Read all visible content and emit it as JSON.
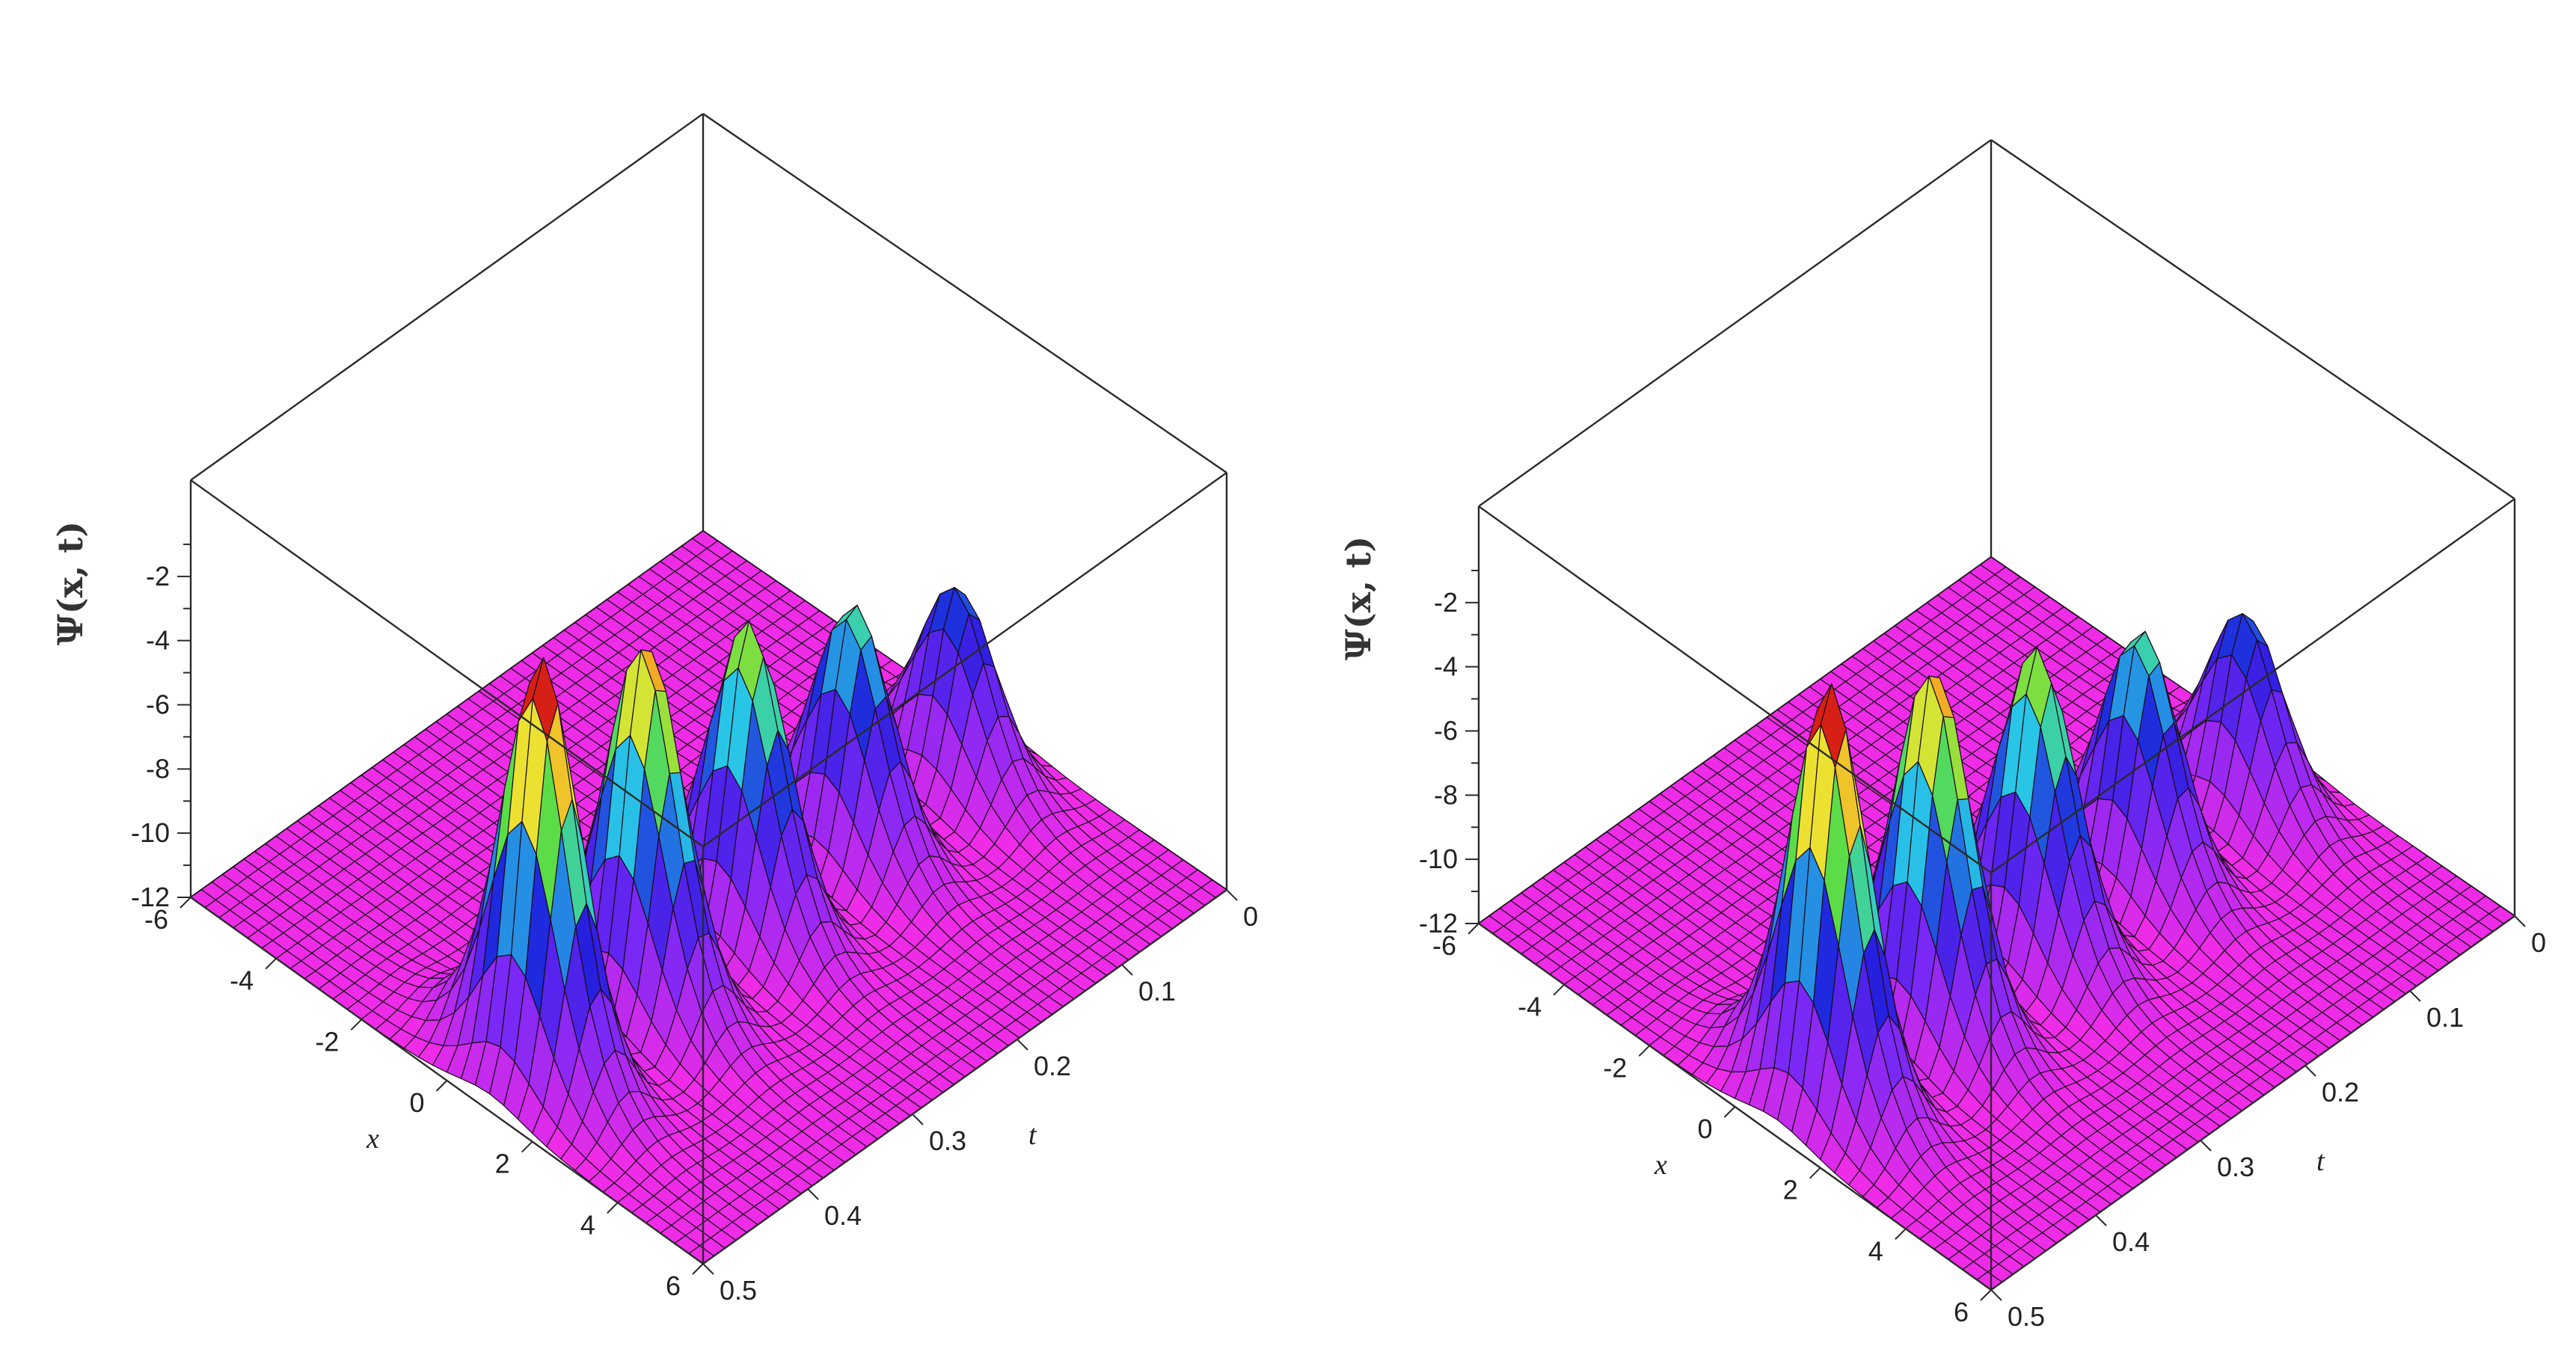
{
  "chart_data": [
    {
      "type": "surface3d",
      "zlabel": "Ψ(x, t)",
      "xlabel": "x",
      "ylabel": "t",
      "x_range": [
        -6,
        6
      ],
      "t_range": [
        0,
        0.5
      ],
      "z_range": [
        -12,
        0
      ],
      "x_ticks": [
        "-6",
        "-4",
        "-2",
        "0",
        "2",
        "4",
        "6"
      ],
      "t_ticks": [
        "0",
        "0.1",
        "0.2",
        "0.3",
        "0.4",
        "0.5"
      ],
      "z_ticks": [
        "-2",
        "-4",
        "-6",
        "-8",
        "-10",
        "-12"
      ],
      "baseline": -12,
      "peaks": {
        "count": 5,
        "first_t": 0.05,
        "spacing_t": 0.1,
        "x_center": 1,
        "height_top": -6,
        "height_bottom": 1
      },
      "colormap": "rainbow (magenta low → red high)"
    },
    {
      "type": "surface3d",
      "zlabel": "Ψ(x, t)",
      "xlabel": "x",
      "ylabel": "t",
      "x_range": [
        -6,
        6
      ],
      "t_range": [
        0,
        0.5
      ],
      "z_range": [
        -12,
        0
      ],
      "x_ticks": [
        "-6",
        "-4",
        "-2",
        "0",
        "2",
        "4",
        "6"
      ],
      "t_ticks": [
        "0",
        "0.1",
        "0.2",
        "0.3",
        "0.4",
        "0.5"
      ],
      "z_ticks": [
        "-2",
        "-4",
        "-6",
        "-8",
        "-10",
        "-12"
      ],
      "baseline": -12,
      "peaks": {
        "count": 5,
        "first_t": 0.05,
        "spacing_t": 0.1,
        "x_center": 1,
        "height_top": -6,
        "height_bottom": 1
      },
      "colormap": "rainbow (magenta low → red high)"
    }
  ]
}
